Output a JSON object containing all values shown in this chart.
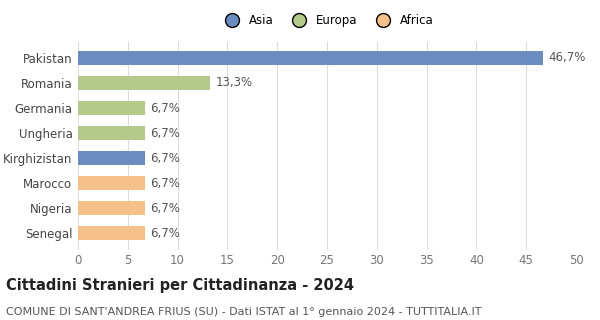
{
  "categories": [
    "Pakistan",
    "Romania",
    "Germania",
    "Ungheria",
    "Kirghizistan",
    "Marocco",
    "Nigeria",
    "Senegal"
  ],
  "values": [
    46.7,
    13.3,
    6.7,
    6.7,
    6.7,
    6.7,
    6.7,
    6.7
  ],
  "labels": [
    "46,7%",
    "13,3%",
    "6,7%",
    "6,7%",
    "6,7%",
    "6,7%",
    "6,7%",
    "6,7%"
  ],
  "colors": [
    "#6b8cbf",
    "#b5c98a",
    "#b5c98a",
    "#b5c98a",
    "#6b8cbf",
    "#f5c08a",
    "#f5c08a",
    "#f5c08a"
  ],
  "legend": [
    {
      "label": "Asia",
      "color": "#6b8cbf"
    },
    {
      "label": "Europa",
      "color": "#b5c98a"
    },
    {
      "label": "Africa",
      "color": "#f5c08a"
    }
  ],
  "xlim": [
    0,
    50
  ],
  "xticks": [
    0,
    5,
    10,
    15,
    20,
    25,
    30,
    35,
    40,
    45,
    50
  ],
  "title": "Cittadini Stranieri per Cittadinanza - 2024",
  "subtitle": "COMUNE DI SANT'ANDREA FRIUS (SU) - Dati ISTAT al 1° gennaio 2024 - TUTTITALIA.IT",
  "background_color": "#ffffff",
  "grid_color": "#dddddd",
  "bar_height": 0.55,
  "title_fontsize": 10.5,
  "subtitle_fontsize": 8,
  "tick_fontsize": 8.5,
  "label_fontsize": 8.5
}
